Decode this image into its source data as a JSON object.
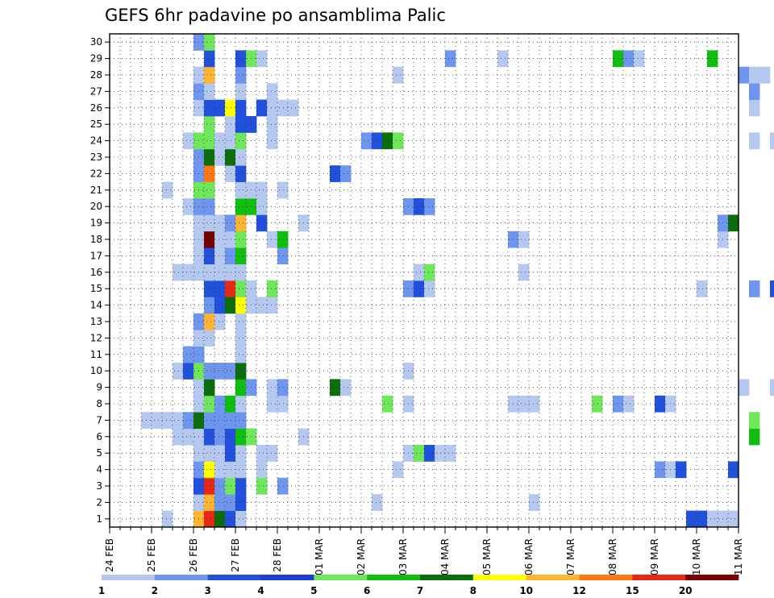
{
  "chart_data": {
    "type": "heatmap",
    "title": "GEFS 6hr padavine po ansamblima Palic",
    "xlabel": "",
    "ylabel": "",
    "x_unit": "6-hour step",
    "x_ticks": [
      "24 FEB",
      "25 FEB",
      "26 FEB",
      "27 FEB",
      "28 FEB",
      "01 MAR",
      "02 MAR",
      "03 MAR",
      "04 MAR",
      "05 MAR",
      "06 MAR",
      "07 MAR",
      "08 MAR",
      "09 MAR",
      "10 MAR",
      "11 MAR"
    ],
    "y_ticks": [
      "1",
      "2",
      "3",
      "4",
      "5",
      "6",
      "7",
      "8",
      "9",
      "10",
      "11",
      "12",
      "13",
      "14",
      "15",
      "16",
      "17",
      "18",
      "19",
      "20",
      "21",
      "22",
      "23",
      "24",
      "25",
      "26",
      "27",
      "28",
      "29",
      "30"
    ],
    "xlim": [
      0,
      60
    ],
    "ylim": [
      0.5,
      30.5
    ],
    "grid": "dotted",
    "colorbar": {
      "placement": "bottom",
      "labels": [
        "1",
        "2",
        "3",
        "4",
        "5",
        "6",
        "7",
        "8",
        "10",
        "12",
        "15",
        "20"
      ],
      "colors": [
        "#b4c8f0",
        "#6e96ee",
        "#2050dc",
        "#1e3cd6",
        "#6ee85a",
        "#10be10",
        "#0a6e0a",
        "#ffff00",
        "#ffb432",
        "#ff7812",
        "#e62814",
        "#780000"
      ]
    },
    "cells": [
      [
        5,
        1,
        1
      ],
      [
        8,
        1,
        9
      ],
      [
        9,
        1,
        11
      ],
      [
        10,
        1,
        7
      ],
      [
        11,
        1,
        3
      ],
      [
        12,
        1,
        1
      ],
      [
        55,
        1,
        3
      ],
      [
        56,
        1,
        3
      ],
      [
        57,
        1,
        1
      ],
      [
        58,
        1,
        1
      ],
      [
        59,
        1,
        1
      ],
      [
        8,
        2,
        1
      ],
      [
        9,
        2,
        9
      ],
      [
        10,
        2,
        2
      ],
      [
        11,
        2,
        2
      ],
      [
        12,
        2,
        3
      ],
      [
        25,
        2,
        1
      ],
      [
        40,
        2,
        1
      ],
      [
        68,
        2,
        2
      ],
      [
        8,
        3,
        3
      ],
      [
        9,
        3,
        11
      ],
      [
        10,
        3,
        2
      ],
      [
        11,
        3,
        5
      ],
      [
        12,
        3,
        3
      ],
      [
        14,
        3,
        5
      ],
      [
        16,
        3,
        2
      ],
      [
        67,
        3,
        5
      ],
      [
        8,
        4,
        2
      ],
      [
        9,
        4,
        8
      ],
      [
        10,
        4,
        1
      ],
      [
        11,
        4,
        1
      ],
      [
        12,
        4,
        1
      ],
      [
        14,
        4,
        1
      ],
      [
        27,
        4,
        1
      ],
      [
        52,
        4,
        2
      ],
      [
        53,
        4,
        1
      ],
      [
        54,
        4,
        3
      ],
      [
        59,
        4,
        3
      ],
      [
        8,
        5,
        1
      ],
      [
        9,
        5,
        1
      ],
      [
        10,
        5,
        1
      ],
      [
        11,
        5,
        3
      ],
      [
        12,
        5,
        1
      ],
      [
        14,
        5,
        1
      ],
      [
        15,
        5,
        1
      ],
      [
        28,
        5,
        1
      ],
      [
        29,
        5,
        5
      ],
      [
        30,
        5,
        3
      ],
      [
        31,
        5,
        1
      ],
      [
        32,
        5,
        1
      ],
      [
        65,
        5,
        1
      ],
      [
        66,
        5,
        3
      ],
      [
        6,
        6,
        1
      ],
      [
        7,
        6,
        1
      ],
      [
        8,
        6,
        1
      ],
      [
        9,
        6,
        3
      ],
      [
        10,
        6,
        2
      ],
      [
        11,
        6,
        3
      ],
      [
        12,
        6,
        6
      ],
      [
        13,
        6,
        5
      ],
      [
        18,
        6,
        1
      ],
      [
        61,
        6,
        6
      ],
      [
        3,
        7,
        1
      ],
      [
        4,
        7,
        1
      ],
      [
        5,
        7,
        1
      ],
      [
        6,
        7,
        1
      ],
      [
        7,
        7,
        2
      ],
      [
        8,
        7,
        7
      ],
      [
        9,
        7,
        2
      ],
      [
        10,
        7,
        2
      ],
      [
        11,
        7,
        2
      ],
      [
        12,
        7,
        2
      ],
      [
        61,
        7,
        5
      ],
      [
        65,
        7,
        1
      ],
      [
        67,
        7,
        1
      ],
      [
        8,
        8,
        1
      ],
      [
        9,
        8,
        5
      ],
      [
        10,
        8,
        2
      ],
      [
        11,
        8,
        6
      ],
      [
        12,
        8,
        1
      ],
      [
        15,
        8,
        1
      ],
      [
        16,
        8,
        1
      ],
      [
        26,
        8,
        5
      ],
      [
        28,
        8,
        1
      ],
      [
        38,
        8,
        1
      ],
      [
        39,
        8,
        1
      ],
      [
        40,
        8,
        1
      ],
      [
        46,
        8,
        5
      ],
      [
        48,
        8,
        2
      ],
      [
        49,
        8,
        1
      ],
      [
        52,
        8,
        3
      ],
      [
        53,
        8,
        1
      ],
      [
        8,
        9,
        1
      ],
      [
        9,
        9,
        7
      ],
      [
        12,
        9,
        6
      ],
      [
        13,
        9,
        2
      ],
      [
        15,
        9,
        1
      ],
      [
        16,
        9,
        2
      ],
      [
        21,
        9,
        7
      ],
      [
        22,
        9,
        1
      ],
      [
        60,
        9,
        1
      ],
      [
        63,
        9,
        1
      ],
      [
        64,
        9,
        2
      ],
      [
        67,
        9,
        2
      ],
      [
        68,
        9,
        1
      ],
      [
        6,
        10,
        1
      ],
      [
        7,
        10,
        3
      ],
      [
        8,
        10,
        5
      ],
      [
        9,
        10,
        2
      ],
      [
        10,
        10,
        2
      ],
      [
        11,
        10,
        2
      ],
      [
        12,
        10,
        7
      ],
      [
        28,
        10,
        1
      ],
      [
        66,
        10,
        2
      ],
      [
        67,
        10,
        2
      ],
      [
        68,
        10,
        7
      ],
      [
        69,
        10,
        3
      ],
      [
        7,
        11,
        2
      ],
      [
        8,
        11,
        2
      ],
      [
        12,
        11,
        1
      ],
      [
        8,
        12,
        1
      ],
      [
        9,
        12,
        1
      ],
      [
        12,
        12,
        1
      ],
      [
        8,
        13,
        2
      ],
      [
        9,
        13,
        9
      ],
      [
        10,
        13,
        1
      ],
      [
        12,
        13,
        1
      ],
      [
        9,
        14,
        2
      ],
      [
        10,
        14,
        3
      ],
      [
        11,
        14,
        7
      ],
      [
        12,
        14,
        8
      ],
      [
        13,
        14,
        1
      ],
      [
        14,
        14,
        1
      ],
      [
        15,
        14,
        1
      ],
      [
        9,
        15,
        3
      ],
      [
        10,
        15,
        3
      ],
      [
        11,
        15,
        11
      ],
      [
        12,
        15,
        5
      ],
      [
        13,
        15,
        1
      ],
      [
        15,
        15,
        5
      ],
      [
        28,
        15,
        2
      ],
      [
        29,
        15,
        3
      ],
      [
        30,
        15,
        1
      ],
      [
        56,
        15,
        1
      ],
      [
        61,
        15,
        2
      ],
      [
        63,
        15,
        3
      ],
      [
        64,
        15,
        1
      ],
      [
        6,
        16,
        1
      ],
      [
        7,
        16,
        1
      ],
      [
        8,
        16,
        1
      ],
      [
        9,
        16,
        1
      ],
      [
        10,
        16,
        1
      ],
      [
        11,
        16,
        1
      ],
      [
        12,
        16,
        1
      ],
      [
        29,
        16,
        1
      ],
      [
        30,
        16,
        5
      ],
      [
        39,
        16,
        1
      ],
      [
        8,
        17,
        1
      ],
      [
        9,
        17,
        3
      ],
      [
        10,
        17,
        1
      ],
      [
        11,
        17,
        2
      ],
      [
        12,
        17,
        6
      ],
      [
        16,
        17,
        2
      ],
      [
        67,
        17,
        5
      ],
      [
        69,
        17,
        1
      ],
      [
        8,
        18,
        1
      ],
      [
        9,
        18,
        12
      ],
      [
        10,
        18,
        1
      ],
      [
        11,
        18,
        1
      ],
      [
        12,
        18,
        5
      ],
      [
        15,
        18,
        1
      ],
      [
        16,
        18,
        6
      ],
      [
        38,
        18,
        2
      ],
      [
        39,
        18,
        1
      ],
      [
        58,
        18,
        1
      ],
      [
        66,
        18,
        3
      ],
      [
        67,
        18,
        6
      ],
      [
        68,
        18,
        1
      ],
      [
        8,
        19,
        1
      ],
      [
        9,
        19,
        1
      ],
      [
        10,
        19,
        1
      ],
      [
        11,
        19,
        2
      ],
      [
        12,
        19,
        9
      ],
      [
        14,
        19,
        3
      ],
      [
        18,
        19,
        1
      ],
      [
        58,
        19,
        2
      ],
      [
        59,
        19,
        7
      ],
      [
        66,
        19,
        8
      ],
      [
        67,
        19,
        3
      ],
      [
        68,
        19,
        7
      ],
      [
        69,
        19,
        3
      ],
      [
        7,
        20,
        1
      ],
      [
        8,
        20,
        2
      ],
      [
        9,
        20,
        2
      ],
      [
        12,
        20,
        6
      ],
      [
        13,
        20,
        6
      ],
      [
        14,
        20,
        1
      ],
      [
        28,
        20,
        2
      ],
      [
        29,
        20,
        3
      ],
      [
        30,
        20,
        2
      ],
      [
        5,
        21,
        1
      ],
      [
        8,
        21,
        5
      ],
      [
        9,
        21,
        5
      ],
      [
        12,
        21,
        1
      ],
      [
        13,
        21,
        1
      ],
      [
        14,
        21,
        1
      ],
      [
        16,
        21,
        1
      ],
      [
        8,
        22,
        2
      ],
      [
        9,
        22,
        10
      ],
      [
        11,
        22,
        1
      ],
      [
        12,
        22,
        3
      ],
      [
        21,
        22,
        3
      ],
      [
        22,
        22,
        2
      ],
      [
        8,
        23,
        2
      ],
      [
        9,
        23,
        7
      ],
      [
        10,
        23,
        1
      ],
      [
        11,
        23,
        7
      ],
      [
        12,
        23,
        1
      ],
      [
        66,
        23,
        1
      ],
      [
        67,
        23,
        1
      ],
      [
        7,
        24,
        1
      ],
      [
        8,
        24,
        5
      ],
      [
        9,
        24,
        5
      ],
      [
        10,
        24,
        1
      ],
      [
        11,
        24,
        1
      ],
      [
        12,
        24,
        5
      ],
      [
        15,
        24,
        1
      ],
      [
        24,
        24,
        2
      ],
      [
        25,
        24,
        3
      ],
      [
        26,
        24,
        7
      ],
      [
        27,
        24,
        5
      ],
      [
        61,
        24,
        1
      ],
      [
        63,
        24,
        1
      ],
      [
        64,
        24,
        8
      ],
      [
        65,
        24,
        9
      ],
      [
        9,
        25,
        5
      ],
      [
        11,
        25,
        1
      ],
      [
        12,
        25,
        3
      ],
      [
        13,
        25,
        3
      ],
      [
        15,
        25,
        1
      ],
      [
        8,
        26,
        1
      ],
      [
        9,
        26,
        3
      ],
      [
        10,
        26,
        3
      ],
      [
        11,
        26,
        8
      ],
      [
        12,
        26,
        3
      ],
      [
        14,
        26,
        3
      ],
      [
        15,
        26,
        1
      ],
      [
        16,
        26,
        1
      ],
      [
        17,
        26,
        1
      ],
      [
        61,
        26,
        1
      ],
      [
        65,
        26,
        9
      ],
      [
        66,
        26,
        3
      ],
      [
        67,
        26,
        2
      ],
      [
        8,
        27,
        2
      ],
      [
        9,
        27,
        1
      ],
      [
        12,
        27,
        1
      ],
      [
        15,
        27,
        1
      ],
      [
        61,
        27,
        2
      ],
      [
        8,
        28,
        1
      ],
      [
        9,
        28,
        9
      ],
      [
        12,
        28,
        2
      ],
      [
        27,
        28,
        1
      ],
      [
        60,
        28,
        2
      ],
      [
        61,
        28,
        1
      ],
      [
        62,
        28,
        1
      ],
      [
        64,
        28,
        6
      ],
      [
        65,
        28,
        8
      ],
      [
        66,
        28,
        3
      ],
      [
        9,
        29,
        3
      ],
      [
        12,
        29,
        3
      ],
      [
        13,
        29,
        5
      ],
      [
        14,
        29,
        1
      ],
      [
        32,
        29,
        2
      ],
      [
        37,
        29,
        1
      ],
      [
        48,
        29,
        6
      ],
      [
        49,
        29,
        2
      ],
      [
        50,
        29,
        1
      ],
      [
        57,
        29,
        6
      ],
      [
        8,
        30,
        2
      ],
      [
        9,
        30,
        5
      ]
    ]
  }
}
